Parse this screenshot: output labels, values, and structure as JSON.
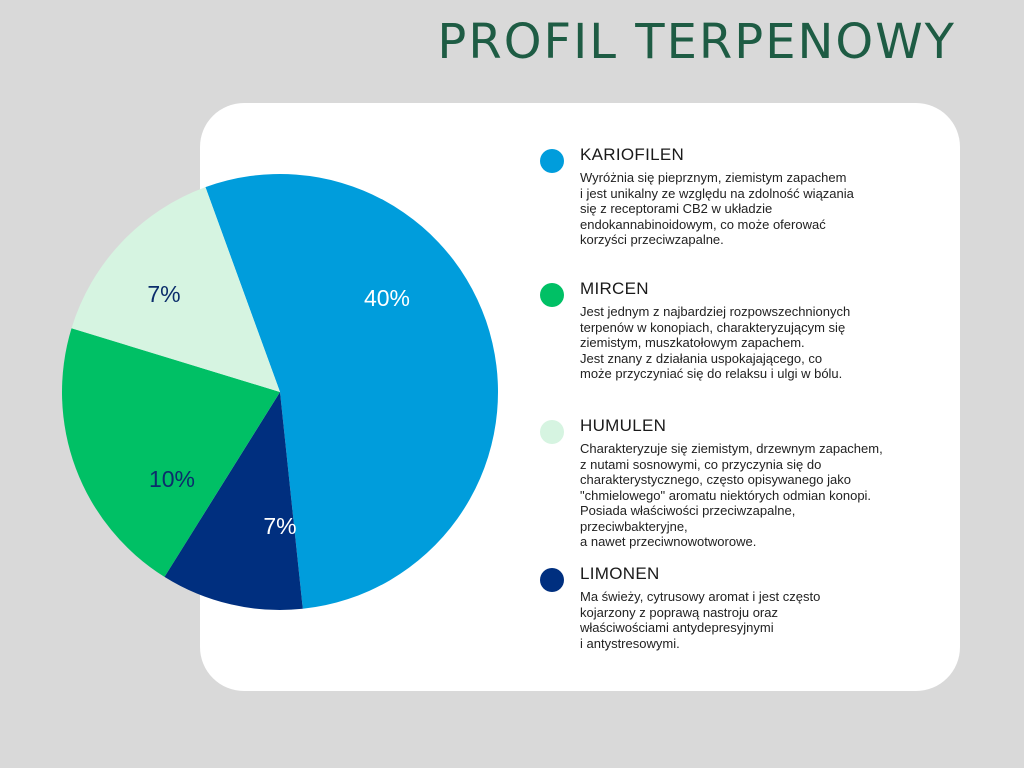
{
  "title": "PROFIL TERPENOWY",
  "chart_data": {
    "type": "pie",
    "slices": [
      {
        "label": "KARIOFILEN",
        "value_label": "40%",
        "color": "#009ddc",
        "label_color": "#ffffff"
      },
      {
        "label": "LIMONEN",
        "value_label": "7%",
        "color": "#002f7f",
        "label_color": "#ffffff"
      },
      {
        "label": "MIRCEN",
        "value_label": "10%",
        "color": "#00c065",
        "label_color": "#0b2d6b"
      },
      {
        "label": "HUMULEN",
        "value_label": "7%",
        "color": "#d6f4e1",
        "label_color": "#0b2d6b"
      }
    ]
  },
  "legend": [
    {
      "name": "KARIOFILEN",
      "color": "#009ddc",
      "description": "Wyróżnia się pieprznym, ziemistym zapachem\ni jest unikalny ze względu na zdolność wiązania\nsię z receptorami CB2 w układzie\nendokannabinoidowym, co może oferować\nkorzyści przeciwzapalne."
    },
    {
      "name": "MIRCEN",
      "color": "#00c065",
      "description": "Jest jednym z najbardziej rozpowszechnionych\nterpenów w konopiach, charakteryzującym się\nziemistym, muszkatołowym zapachem.\nJest znany z działania uspokajającego, co\nmoże przyczyniać się do relaksu i ulgi w bólu."
    },
    {
      "name": "HUMULEN",
      "color": "#d6f4e1",
      "description": "Charakteryzuje się ziemistym, drzewnym zapachem,\nz nutami sosnowymi, co przyczynia się do\ncharakterystycznego, często opisywanego jako\n\"chmielowego\" aromatu niektórych odmian konopi.\nPosiada właściwości przeciwzapalne,\nprzeciwbakteryjne,\na nawet przeciwnowotworowe."
    },
    {
      "name": "LIMONEN",
      "color": "#002f7f",
      "description": "Ma świeży, cytrusowy aromat i jest często\nkojarzony z poprawą nastroju oraz\nwłaściwościami antydepresyjnymi\ni antystresowymi."
    }
  ]
}
